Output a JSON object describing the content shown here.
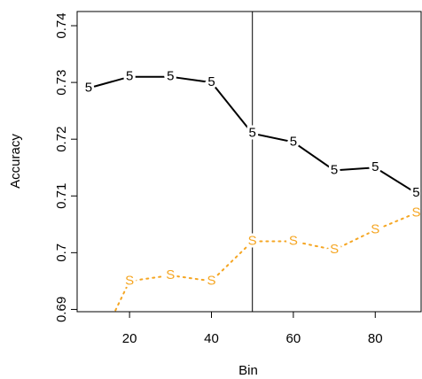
{
  "chart_data": {
    "type": "line",
    "x_label": "Bin",
    "y_label": "Accuracy",
    "x": [
      10,
      20,
      30,
      40,
      50,
      60,
      70,
      80,
      90
    ],
    "series": [
      {
        "marker": "5",
        "color": "#000000",
        "dash": "solid",
        "values": [
          0.729,
          0.731,
          0.731,
          0.73,
          0.721,
          0.7195,
          0.7145,
          0.715,
          0.7105
        ]
      },
      {
        "marker": "S",
        "color": "#f5a623",
        "dash": "dotted",
        "values": [
          0.68,
          0.695,
          0.696,
          0.695,
          0.702,
          0.702,
          0.7005,
          0.704,
          0.707
        ]
      }
    ],
    "vline": 50,
    "xlim": [
      7.2,
      91.2
    ],
    "ylim": [
      0.6896,
      0.7425
    ],
    "xticks": [
      20,
      40,
      60,
      80
    ],
    "yticks": [
      0.69,
      0.7,
      0.71,
      0.72,
      0.73,
      0.74
    ]
  }
}
